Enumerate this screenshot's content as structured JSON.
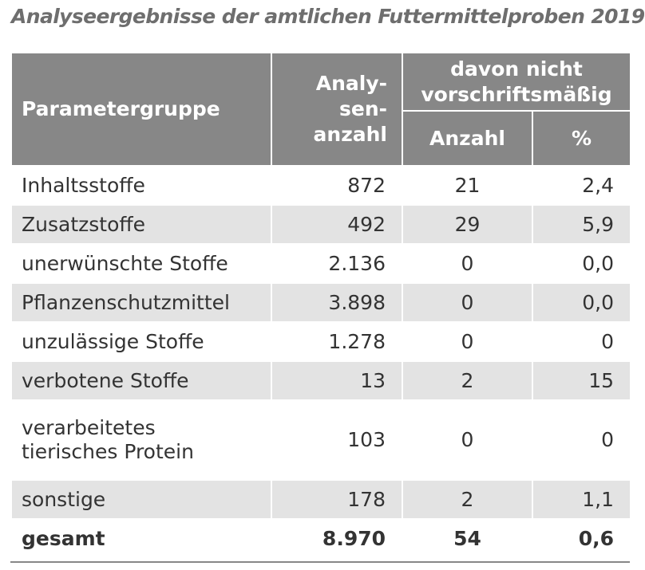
{
  "title": "Analyseergebnisse der amtlichen Futtermittelproben 2019",
  "header": {
    "param": "Parametergruppe",
    "analysen_line1": "Analy-",
    "analysen_line2": "sen-",
    "analysen_line3": "anzahl",
    "davon_line1": "davon nicht",
    "davon_line2": "vorschriftsmäßig",
    "anzahl": "Anzahl",
    "pct": "%"
  },
  "rows": [
    {
      "name": "Inhaltsstoffe",
      "analysen": "872",
      "anzahl": "21",
      "pct": "2,4"
    },
    {
      "name": "Zusatzstoffe",
      "analysen": "492",
      "anzahl": "29",
      "pct": "5,9"
    },
    {
      "name": "unerwünschte Stoffe",
      "analysen": "2.136",
      "anzahl": "0",
      "pct": "0,0"
    },
    {
      "name": "Pflanzenschutzmittel",
      "analysen": "3.898",
      "anzahl": "0",
      "pct": "0,0"
    },
    {
      "name": "unzulässige Stoffe",
      "analysen": "1.278",
      "anzahl": "0",
      "pct": "0"
    },
    {
      "name": "verbotene Stoffe",
      "analysen": "13",
      "anzahl": "2",
      "pct": "15"
    },
    {
      "name_line1": "verarbeitetes",
      "name_line2": "tierisches Protein",
      "analysen": "103",
      "anzahl": "0",
      "pct": "0"
    },
    {
      "name": "sonstige",
      "analysen": "178",
      "anzahl": "2",
      "pct": "1,1"
    }
  ],
  "total": {
    "name": "gesamt",
    "analysen": "8.970",
    "anzahl": "54",
    "pct": "0,6"
  },
  "colors": {
    "header_bg": "#878787",
    "shade_bg": "#e3e3e3",
    "title": "#6e6e6e"
  }
}
